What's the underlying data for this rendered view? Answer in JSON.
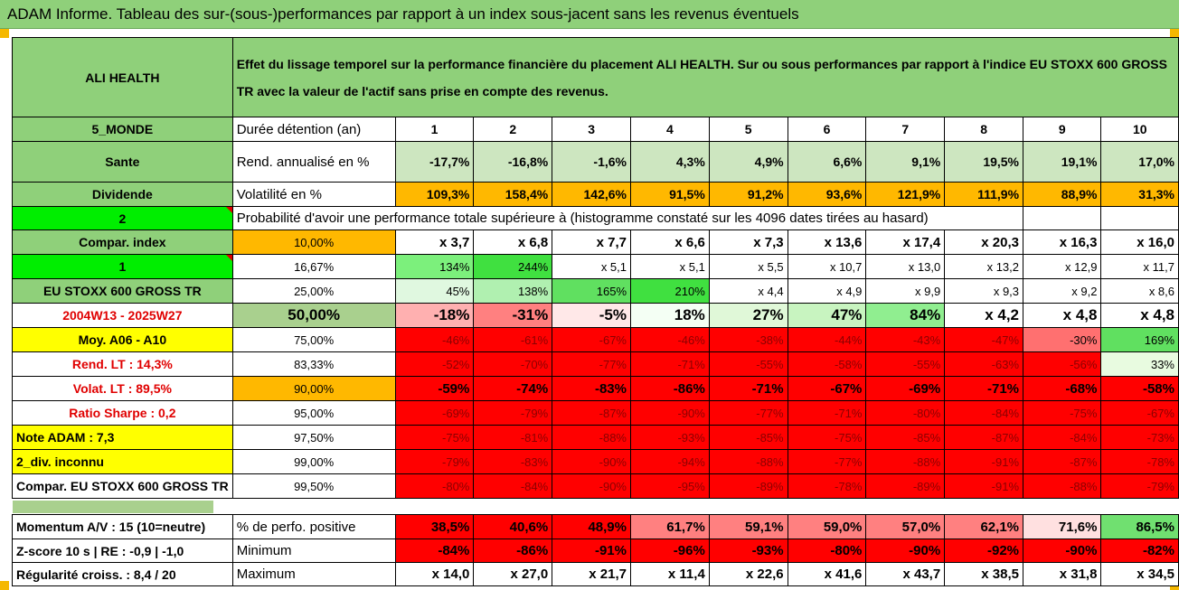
{
  "title": "ADAM Informe. Tableau des sur-(sous-)performances par rapport à un index sous-jacent sans les revenus éventuels",
  "asset": "ALI HEALTH",
  "description": "Effet du lissage temporel sur la performance financière du placement ALI HEALTH. Sur ou sous performances par rapport à l'indice EU STOXX 600 GROSS TR avec la valeur de l'actif sans prise en compte des revenus.",
  "side": {
    "region": "5_MONDE",
    "sector": "Sante",
    "dividend": "Dividende",
    "num2": "2",
    "compar_index": "Compar. index",
    "num1": "1",
    "index_name": "EU STOXX 600 GROSS TR",
    "period": "2004W13 - 2025W27",
    "moy": "Moy. A06 - A10",
    "rend_lt": "Rend. LT :    14,3%",
    "volat_lt": "Volat. LT :    89,5%",
    "sharpe": "Ratio Sharpe :    0,2",
    "note": "Note ADAM : 7,3",
    "div": "2_div. inconnu",
    "compar": "Compar. EU STOXX 600 GROSS TR",
    "momentum": "Momentum A/V : 15 (10=neutre)",
    "zscore": "Z-score 10 s | RE : -0,9 | -1,0",
    "regularite": "Régularité croiss. : 8,4 / 20"
  },
  "row_labels": {
    "duree": "Durée détention (an)",
    "rend": "Rend. annualisé en %",
    "vol": "Volatilité en %",
    "proba": "Probabilité d'avoir une performance totale supérieure à (histogramme constaté sur les 4096 dates tirées au hasard)",
    "pos": "% de perfo. positive",
    "min": "Minimum",
    "max": "Maximum"
  },
  "years": [
    "1",
    "2",
    "3",
    "4",
    "5",
    "6",
    "7",
    "8",
    "9",
    "10"
  ],
  "rend": [
    "-17,7%",
    "-16,8%",
    "-1,6%",
    "4,3%",
    "4,9%",
    "6,6%",
    "9,1%",
    "19,5%",
    "19,1%",
    "17,0%"
  ],
  "vol": [
    "109,3%",
    "158,4%",
    "142,6%",
    "91,5%",
    "91,2%",
    "93,6%",
    "121,9%",
    "111,9%",
    "88,9%",
    "31,3%"
  ],
  "quantiles": [
    {
      "q": "10,00%",
      "v": [
        "x 3,7",
        "x 6,8",
        "x 7,7",
        "x 6,6",
        "x 7,3",
        "x 13,6",
        "x 17,4",
        "x 20,3",
        "x 16,3",
        "x 16,0"
      ]
    },
    {
      "q": "16,67%",
      "v": [
        "134%",
        "244%",
        "x 5,1",
        "x 5,1",
        "x 5,5",
        "x 10,7",
        "x 13,0",
        "x 13,2",
        "x 12,9",
        "x 11,7"
      ]
    },
    {
      "q": "25,00%",
      "v": [
        "45%",
        "138%",
        "165%",
        "210%",
        "x 4,4",
        "x 4,9",
        "x 9,9",
        "x 9,3",
        "x 9,2",
        "x 8,6"
      ]
    },
    {
      "q": "50,00%",
      "v": [
        "-18%",
        "-31%",
        "-5%",
        "18%",
        "27%",
        "47%",
        "84%",
        "x 4,2",
        "x 4,8",
        "x 4,8"
      ]
    },
    {
      "q": "75,00%",
      "v": [
        "-46%",
        "-61%",
        "-67%",
        "-46%",
        "-38%",
        "-44%",
        "-43%",
        "-47%",
        "-30%",
        "169%"
      ]
    },
    {
      "q": "83,33%",
      "v": [
        "-52%",
        "-70%",
        "-77%",
        "-71%",
        "-55%",
        "-58%",
        "-55%",
        "-63%",
        "-56%",
        "33%"
      ]
    },
    {
      "q": "90,00%",
      "v": [
        "-59%",
        "-74%",
        "-83%",
        "-86%",
        "-71%",
        "-67%",
        "-69%",
        "-71%",
        "-68%",
        "-58%"
      ]
    },
    {
      "q": "95,00%",
      "v": [
        "-69%",
        "-79%",
        "-87%",
        "-90%",
        "-77%",
        "-71%",
        "-80%",
        "-84%",
        "-75%",
        "-67%"
      ]
    },
    {
      "q": "97,50%",
      "v": [
        "-75%",
        "-81%",
        "-88%",
        "-93%",
        "-85%",
        "-75%",
        "-85%",
        "-87%",
        "-84%",
        "-73%"
      ]
    },
    {
      "q": "99,00%",
      "v": [
        "-79%",
        "-83%",
        "-90%",
        "-94%",
        "-88%",
        "-77%",
        "-88%",
        "-91%",
        "-87%",
        "-78%"
      ]
    },
    {
      "q": "99,50%",
      "v": [
        "-80%",
        "-84%",
        "-90%",
        "-95%",
        "-89%",
        "-78%",
        "-89%",
        "-91%",
        "-88%",
        "-79%"
      ]
    }
  ],
  "pos": [
    "38,5%",
    "40,6%",
    "48,9%",
    "61,7%",
    "59,1%",
    "59,0%",
    "57,0%",
    "62,1%",
    "71,6%",
    "86,5%"
  ],
  "min": [
    "-84%",
    "-86%",
    "-91%",
    "-96%",
    "-93%",
    "-80%",
    "-90%",
    "-92%",
    "-90%",
    "-82%"
  ],
  "max": [
    "x 14,0",
    "x 27,0",
    "x 21,7",
    "x 11,4",
    "x 22,6",
    "x 41,6",
    "x 43,7",
    "x 38,5",
    "x 31,8",
    "x 34,5"
  ],
  "colors": {
    "header_green": "#8fd07a",
    "bright_green": "#00ee00",
    "orange": "#ffb800",
    "yellow": "#ffff00",
    "red": "#ff0000",
    "label_red": "#e00000"
  }
}
